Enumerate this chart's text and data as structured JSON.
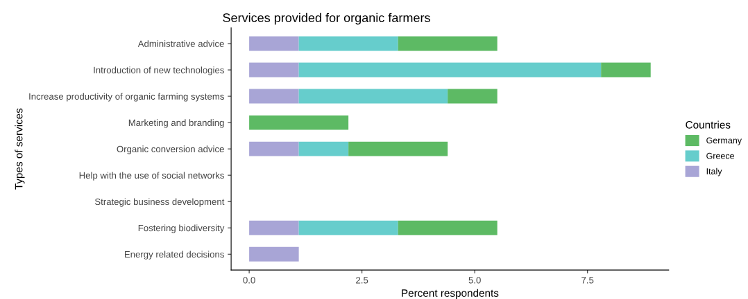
{
  "chart_data": {
    "type": "bar",
    "orientation": "horizontal",
    "stacked": true,
    "title": "Services provided for organic farmers",
    "xlabel": "Percent respondents",
    "ylabel": "Types of services",
    "legend_title": "Countries",
    "categories": [
      "Administrative advice",
      "Introduction of new technologies",
      "Increase productivity of organic farming systems",
      "Marketing and branding",
      "Organic conversion advice",
      "Help with the use of social networks",
      "Strategic business development",
      "Fostering biodiversity",
      "Energy related decisions"
    ],
    "series": [
      {
        "name": "Italy",
        "color": "#a8a5d6",
        "values": [
          1.1,
          1.1,
          1.1,
          0,
          1.1,
          0,
          0,
          1.1,
          1.1
        ]
      },
      {
        "name": "Greece",
        "color": "#66cdcc",
        "values": [
          2.2,
          6.7,
          3.3,
          0,
          1.1,
          0,
          0,
          2.2,
          0
        ]
      },
      {
        "name": "Germany",
        "color": "#5dba64",
        "values": [
          2.2,
          1.1,
          1.1,
          2.2,
          2.2,
          0,
          0,
          2.2,
          0
        ]
      }
    ],
    "xlim": [
      -0.4,
      9.3
    ],
    "xticks": [
      {
        "value": 0,
        "label": "0.0"
      },
      2.5,
      {
        "value": 5,
        "label": "5.0"
      },
      7.5
    ],
    "grid": false,
    "legend": "right"
  }
}
